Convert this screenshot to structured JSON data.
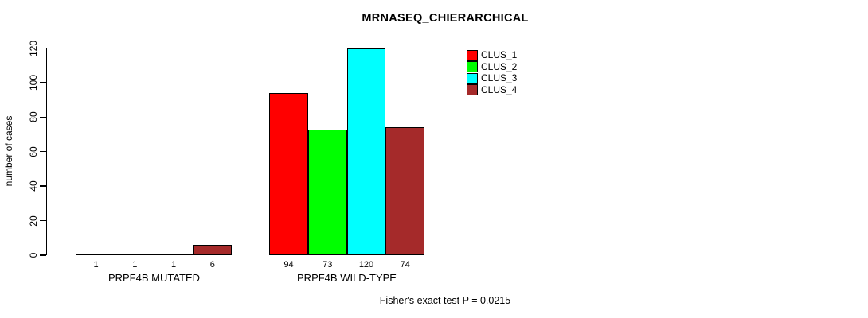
{
  "title": "MRNASEQ_CHIERARCHICAL",
  "y_axis": {
    "label": "number of cases",
    "ticks": [
      "0",
      "20",
      "40",
      "60",
      "80",
      "100",
      "120"
    ]
  },
  "groups": [
    {
      "label": "PRPF4B MUTATED"
    },
    {
      "label": "PRPF4B WILD-TYPE"
    }
  ],
  "legend": {
    "items": [
      {
        "label": "CLUS_1",
        "color": "#FF0000"
      },
      {
        "label": "CLUS_2",
        "color": "#00FF00"
      },
      {
        "label": "CLUS_3",
        "color": "#00FFFF"
      },
      {
        "label": "CLUS_4",
        "color": "#A52A2A"
      }
    ]
  },
  "footnote": "Fisher's exact test P = 0.0215",
  "chart_data": {
    "type": "bar",
    "title": "MRNASEQ_CHIERARCHICAL",
    "ylabel": "number of cases",
    "ylim": [
      0,
      120
    ],
    "yticks": [
      0,
      20,
      40,
      60,
      80,
      100,
      120
    ],
    "grid": false,
    "legend_position": "top-right",
    "categories": [
      "PRPF4B MUTATED",
      "PRPF4B WILD-TYPE"
    ],
    "series": [
      {
        "name": "CLUS_1",
        "color": "#FF0000",
        "values": [
          1,
          94
        ]
      },
      {
        "name": "CLUS_2",
        "color": "#00FF00",
        "values": [
          1,
          73
        ]
      },
      {
        "name": "CLUS_3",
        "color": "#00FFFF",
        "values": [
          1,
          120
        ]
      },
      {
        "name": "CLUS_4",
        "color": "#A52A2A",
        "values": [
          6,
          74
        ]
      }
    ],
    "bar_value_labels": [
      [
        "1",
        "1",
        "1",
        "6"
      ],
      [
        "94",
        "73",
        "120",
        "74"
      ]
    ],
    "annotation": "Fisher's exact test P = 0.0215"
  }
}
